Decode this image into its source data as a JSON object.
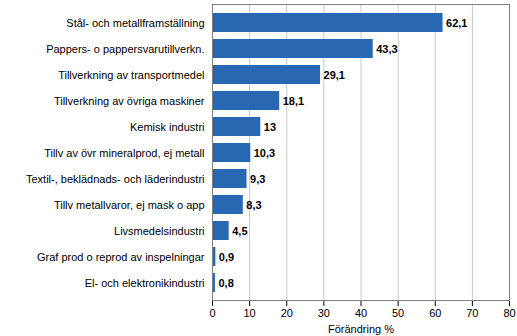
{
  "chart_data": {
    "type": "bar",
    "orientation": "horizontal",
    "categories": [
      "Stål- och metallframställning",
      "Pappers- o pappersvarutillverkn.",
      "Tillverkning av transportmedel",
      "Tillverkning av övriga maskiner",
      "Kemisk industri",
      "Tillv av övr mineralprod, ej metall",
      "Textil-, beklädnads- och läderindustri",
      "Tillv metallvaror, ej mask o app",
      "Livsmedelsindustri",
      "Graf prod o reprod av inspelningar",
      "El- och elektronikindustri"
    ],
    "values": [
      62.1,
      43.3,
      29.1,
      18.1,
      13,
      10.3,
      9.3,
      8.3,
      4.5,
      0.9,
      0.8
    ],
    "value_labels": [
      "62,1",
      "43,3",
      "29,1",
      "18,1",
      "13",
      "10,3",
      "9,3",
      "8,3",
      "4,5",
      "0,9",
      "0,8"
    ],
    "color": "#2867b2",
    "x_label": "Förändring %",
    "xlim": [
      0,
      80
    ],
    "xticks": [
      0,
      10,
      20,
      30,
      40,
      50,
      60,
      70,
      80
    ],
    "grid": true,
    "data_labels": true
  }
}
